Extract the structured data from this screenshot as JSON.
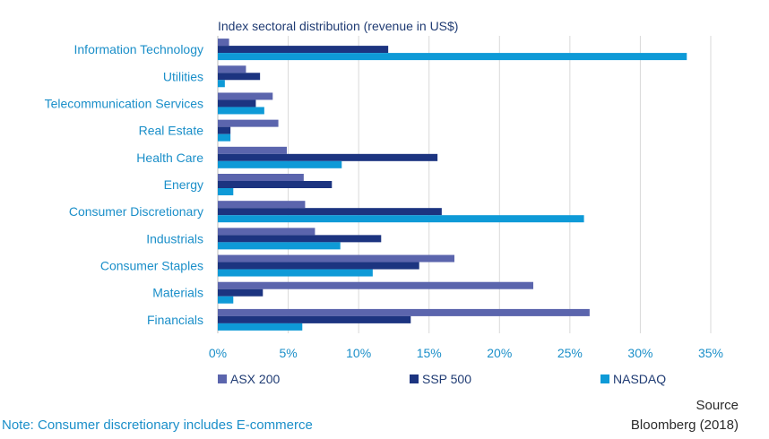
{
  "chart_data": {
    "type": "bar",
    "orientation": "horizontal",
    "title": "Index sectoral distribution (revenue in US$)",
    "categories": [
      "Information Technology",
      "Utilities",
      "Telecommunication Services",
      "Real Estate",
      "Health Care",
      "Energy",
      "Consumer Discretionary",
      "Industrials",
      "Consumer Staples",
      "Materials",
      "Financials"
    ],
    "series": [
      {
        "name": "ASX 200",
        "color": "#5b65ad",
        "values": [
          0.8,
          2.0,
          3.9,
          4.3,
          4.9,
          6.1,
          6.2,
          6.9,
          16.8,
          22.4,
          26.4
        ]
      },
      {
        "name": "SSP 500",
        "color": "#1c3480",
        "values": [
          12.1,
          3.0,
          2.7,
          0.9,
          15.6,
          8.1,
          15.9,
          11.6,
          14.3,
          3.2,
          13.7
        ]
      },
      {
        "name": "NASDAQ",
        "color": "#0e9ad7",
        "values": [
          33.3,
          0.5,
          3.3,
          0.9,
          8.8,
          1.1,
          26.0,
          8.7,
          11.0,
          1.1,
          6.0
        ]
      }
    ],
    "xlim": [
      0,
      35
    ],
    "xticks": [
      "0%",
      "5%",
      "10%",
      "15%",
      "20%",
      "25%",
      "30%",
      "35%"
    ],
    "grid": "vertical",
    "legend": "bottom"
  },
  "note": "Note: Consumer discretionary includes E-commerce",
  "source": {
    "title": "Source",
    "detail": "Bloomberg (2018)"
  }
}
